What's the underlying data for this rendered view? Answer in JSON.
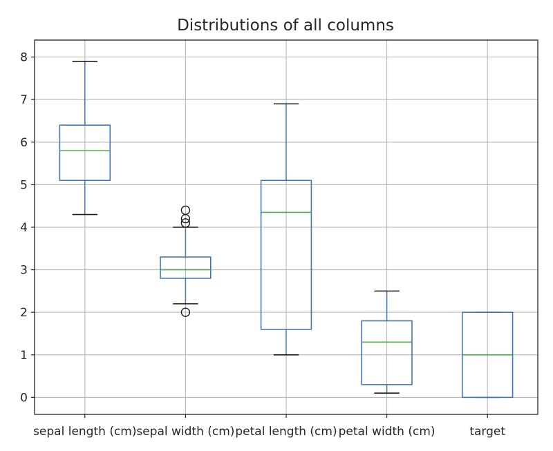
{
  "chart_data": {
    "type": "box",
    "title": "Distributions of all columns",
    "xlabel": "",
    "ylabel": "",
    "ylim": [
      -0.4,
      8.4
    ],
    "yticks": [
      0,
      1,
      2,
      3,
      4,
      5,
      6,
      7,
      8
    ],
    "grid": true,
    "categories": [
      "sepal length (cm)",
      "sepal width (cm)",
      "petal length (cm)",
      "petal width (cm)",
      "target"
    ],
    "boxes": [
      {
        "whisker_low": 4.3,
        "q1": 5.1,
        "median": 5.8,
        "q3": 6.4,
        "whisker_high": 7.9,
        "outliers": []
      },
      {
        "whisker_low": 2.2,
        "q1": 2.8,
        "median": 3.0,
        "q3": 3.3,
        "whisker_high": 4.0,
        "outliers": [
          2.0,
          4.1,
          4.2,
          4.4
        ]
      },
      {
        "whisker_low": 1.0,
        "q1": 1.6,
        "median": 4.35,
        "q3": 5.1,
        "whisker_high": 6.9,
        "outliers": []
      },
      {
        "whisker_low": 0.1,
        "q1": 0.3,
        "median": 1.3,
        "q3": 1.8,
        "whisker_high": 2.5,
        "outliers": []
      },
      {
        "whisker_low": 0.0,
        "q1": 0.0,
        "median": 1.0,
        "q3": 2.0,
        "whisker_high": 2.0,
        "outliers": []
      }
    ],
    "colors": {
      "box": "#3f76b5",
      "median": "#4caf3f",
      "whisker_cap": "#1a1a1a",
      "grid": "#b0b0b0",
      "outlier": "#1a1a1a"
    }
  }
}
